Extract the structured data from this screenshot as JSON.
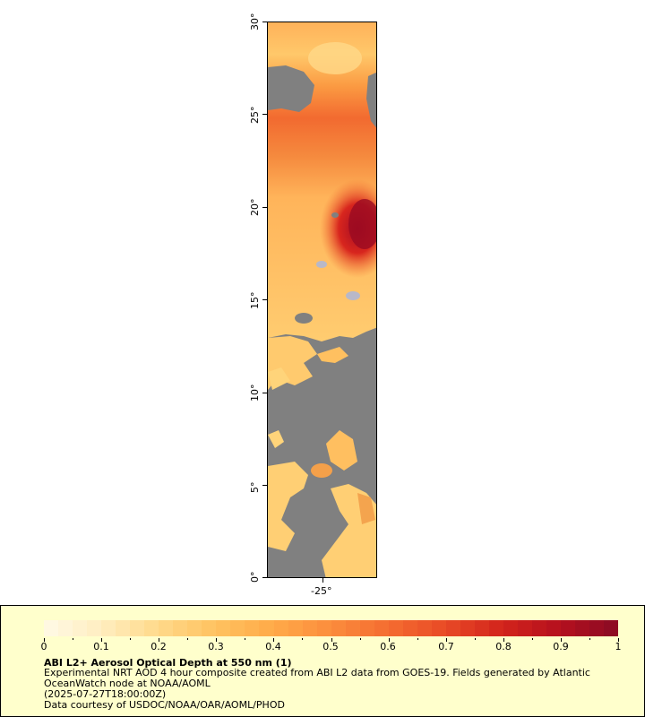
{
  "map": {
    "lat_labels": [
      "30°",
      "25°",
      "20°",
      "15°",
      "10°",
      "5°",
      "0°"
    ],
    "lat_values": [
      30,
      25,
      20,
      15,
      10,
      5,
      0
    ],
    "lon_labels": [
      "-25°"
    ],
    "lon_values": [
      -25
    ],
    "lat_range": [
      0,
      30
    ],
    "lon_range": [
      -28,
      -22
    ],
    "no_data_color": "#808080"
  },
  "legend": {
    "tick_labels": [
      "0",
      "0.1",
      "0.2",
      "0.3",
      "0.4",
      "0.5",
      "0.6",
      "0.7",
      "0.8",
      "0.9",
      "1"
    ],
    "range": [
      0,
      1
    ],
    "colors": [
      "#fff9e6",
      "#ffedc0",
      "#ffd98a",
      "#ffc260",
      "#ffaa48",
      "#fb8c3c",
      "#f46c30",
      "#e84a26",
      "#d2231c",
      "#b4101e",
      "#8a0a24"
    ],
    "title": "ABI L2+ Aerosol Optical Depth at 550 nm (1)",
    "description": "Experimental NRT AOD 4 hour composite created from ABI L2 data from GOES-19. Fields generated by Atlantic OceanWatch node at NOAA/AOML",
    "timestamp": "(2025-07-27T18:00:00Z)",
    "credit": "Data courtesy of USDOC/NOAA/OAR/AOML/PHOD"
  }
}
